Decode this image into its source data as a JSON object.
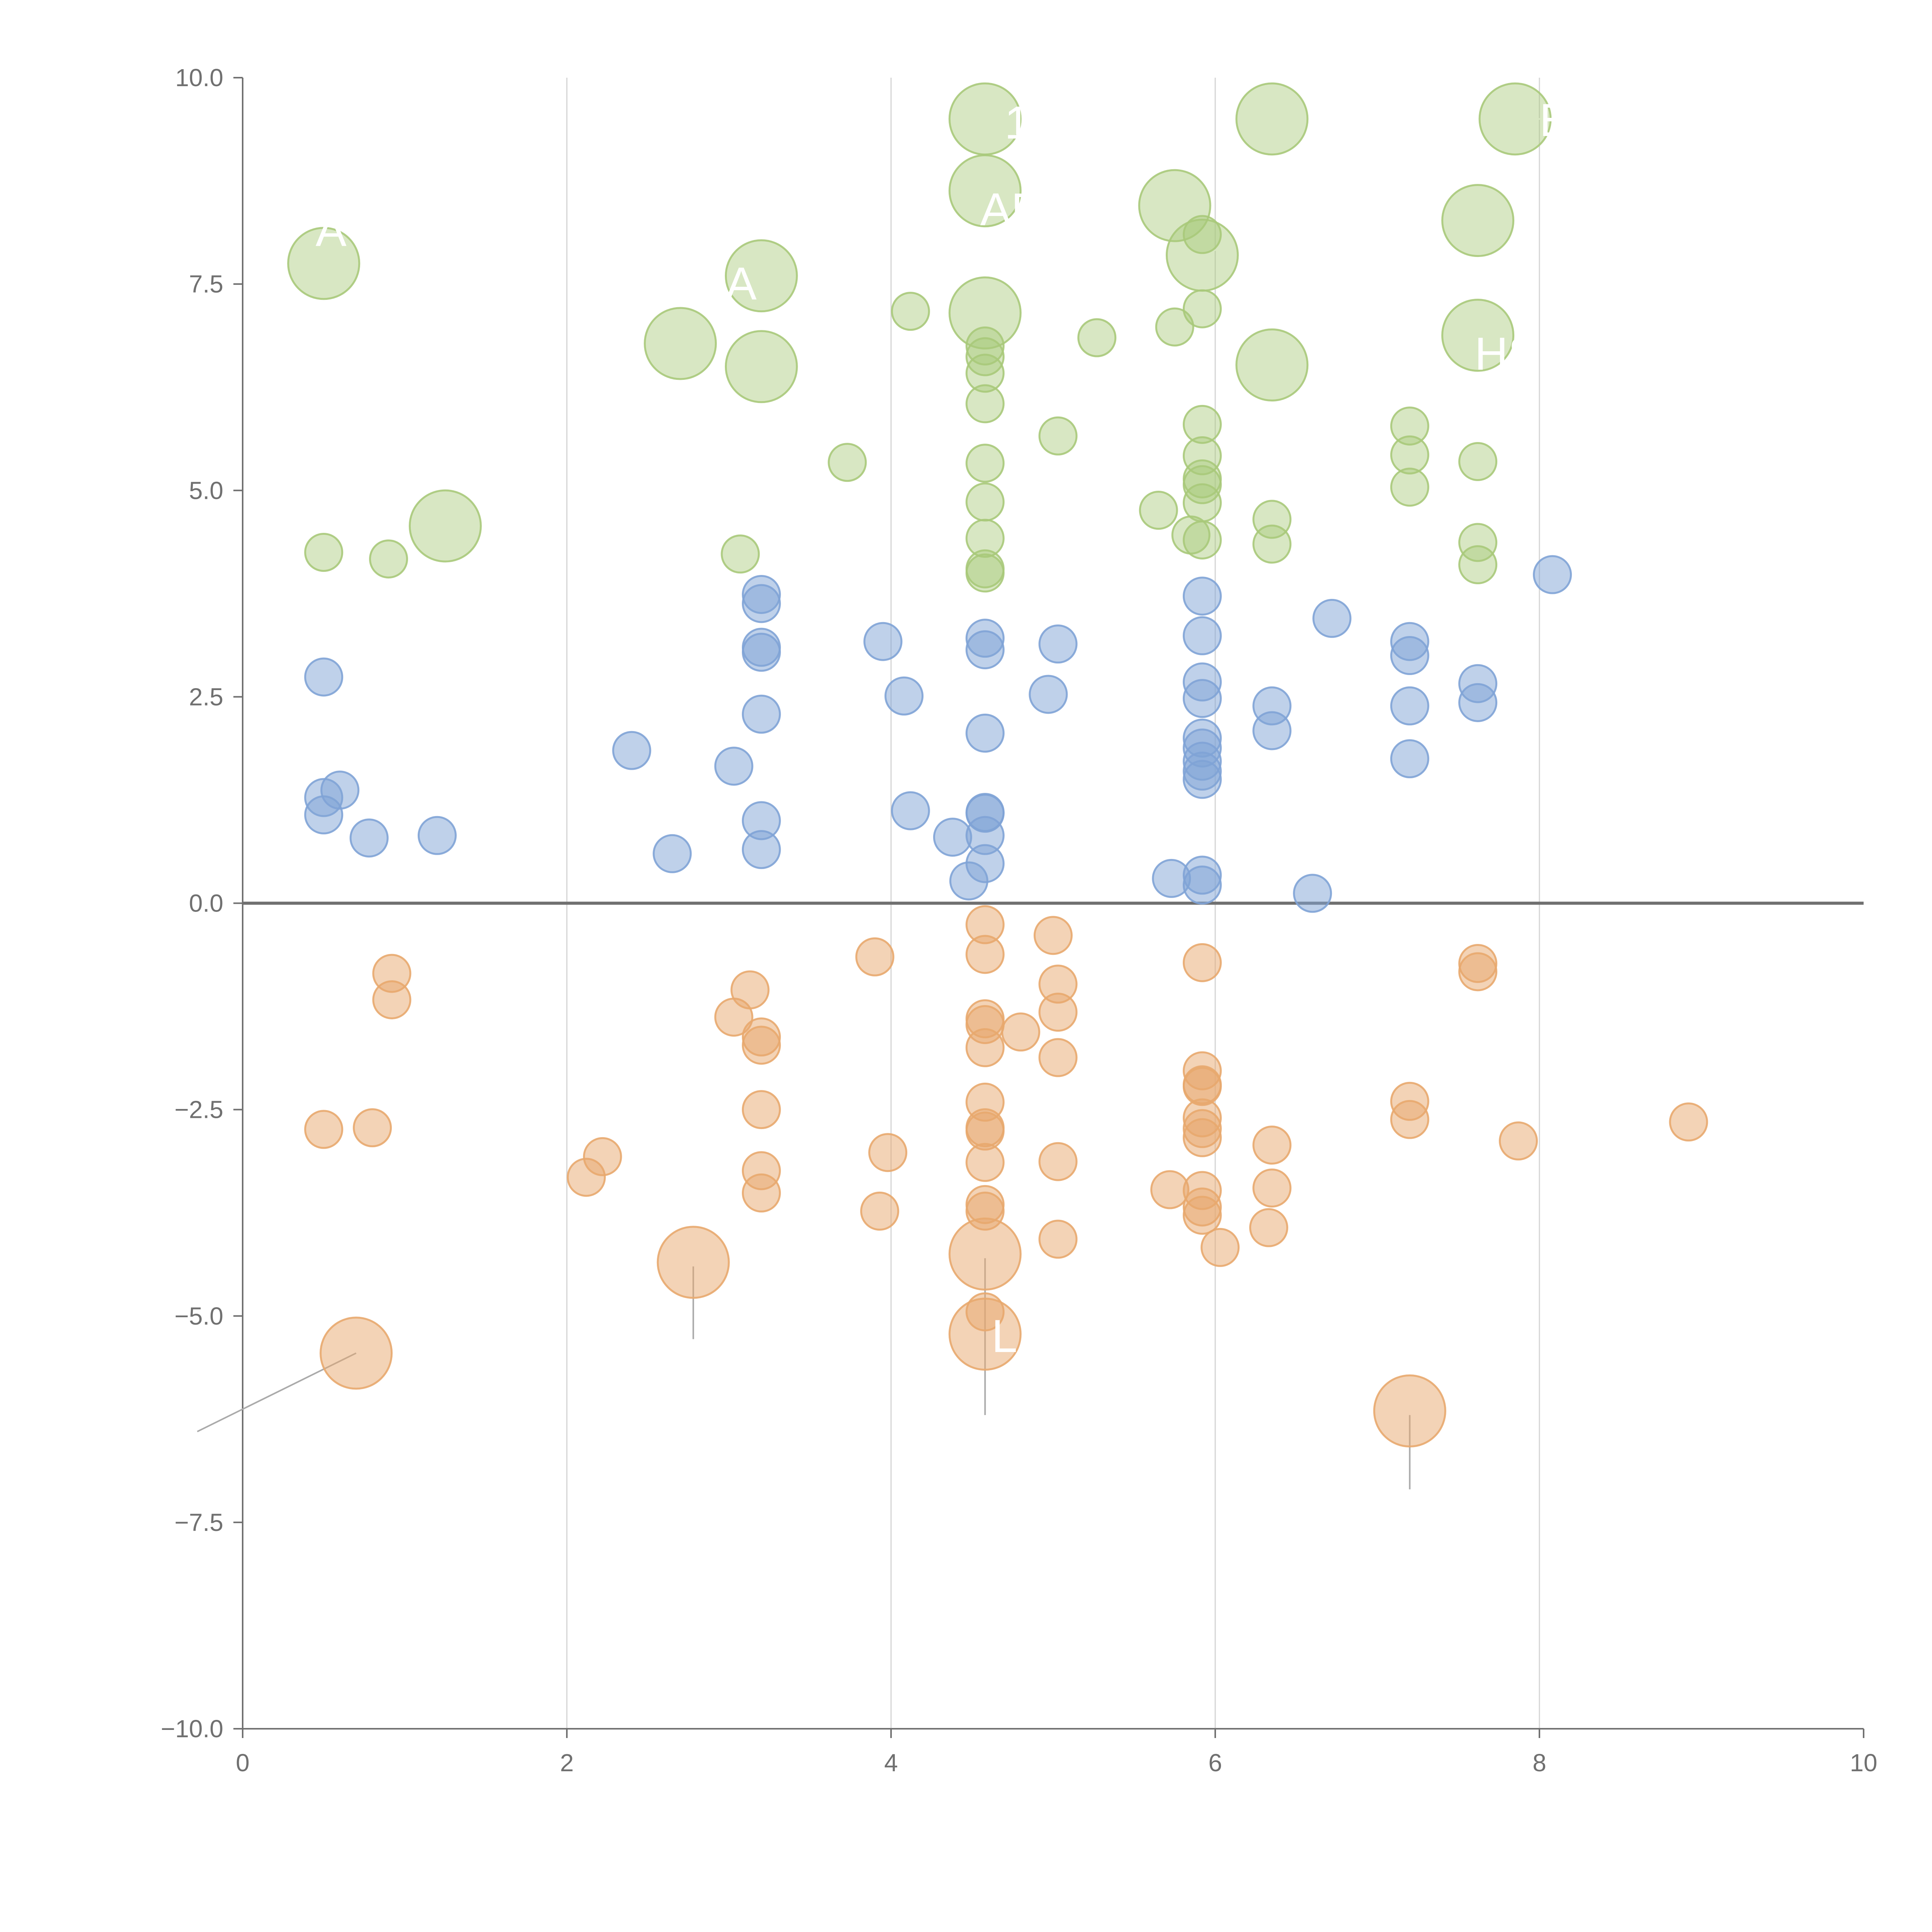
{
  "chart_data": {
    "type": "scatter",
    "title": "",
    "xlabel": "",
    "ylabel": "",
    "xlim": [
      0,
      10
    ],
    "ylim": [
      -10,
      10
    ],
    "grid": "vertical",
    "x_ticks": [
      0,
      2,
      4,
      6,
      8,
      10
    ],
    "x_tick_labels": [
      "0",
      "2",
      "4",
      "6",
      "8",
      "10"
    ],
    "y_ticks": [
      -10,
      -7.5,
      -5,
      -2.5,
      0,
      2.5,
      5,
      7.5,
      10
    ],
    "y_tick_labels": [
      "−10.0",
      "−7.5",
      "−5.0",
      "−2.5",
      "0.0",
      "2.5",
      "5.0",
      "7.5",
      "10.0"
    ],
    "zero_line": 0,
    "series": [
      {
        "name": "upper",
        "color": "#a9c97a",
        "fill_opacity": 0.45,
        "points": [
          [
            0.5,
            7.75,
            "big"
          ],
          [
            1.25,
            4.57,
            "big"
          ],
          [
            2.7,
            6.78,
            "big"
          ],
          [
            3.2,
            7.6,
            "big"
          ],
          [
            3.2,
            6.5,
            "big"
          ],
          [
            4.58,
            9.5,
            "big"
          ],
          [
            4.58,
            8.63,
            "big"
          ],
          [
            4.58,
            7.15,
            "big"
          ],
          [
            5.75,
            8.45,
            "big"
          ],
          [
            5.92,
            7.85,
            "big"
          ],
          [
            6.35,
            9.5,
            "big"
          ],
          [
            6.35,
            6.52,
            "big"
          ],
          [
            7.62,
            8.27,
            "big"
          ],
          [
            7.62,
            6.88,
            "big"
          ],
          [
            7.85,
            9.5,
            "big"
          ],
          [
            0.5,
            4.25,
            "small"
          ],
          [
            0.9,
            4.17,
            "small"
          ],
          [
            3.07,
            4.23,
            "small"
          ],
          [
            3.73,
            5.34,
            "small"
          ],
          [
            4.12,
            7.17,
            "small"
          ],
          [
            4.58,
            6.75,
            "small"
          ],
          [
            4.58,
            6.62,
            "small"
          ],
          [
            4.58,
            6.42,
            "small"
          ],
          [
            4.58,
            6.05,
            "small"
          ],
          [
            4.58,
            5.33,
            "small"
          ],
          [
            4.58,
            4.86,
            "small"
          ],
          [
            4.58,
            4.42,
            "small"
          ],
          [
            4.58,
            4.05,
            "small"
          ],
          [
            4.58,
            4.0,
            "small"
          ],
          [
            5.03,
            5.66,
            "small"
          ],
          [
            5.27,
            6.85,
            "small"
          ],
          [
            5.65,
            4.76,
            "small"
          ],
          [
            5.75,
            6.98,
            "small"
          ],
          [
            5.85,
            4.46,
            "small"
          ],
          [
            5.92,
            8.1,
            "small"
          ],
          [
            5.92,
            7.2,
            "small"
          ],
          [
            5.92,
            5.8,
            "small"
          ],
          [
            5.92,
            5.42,
            "small"
          ],
          [
            5.92,
            5.14,
            "small"
          ],
          [
            5.92,
            5.07,
            "small"
          ],
          [
            5.92,
            4.85,
            "small"
          ],
          [
            5.92,
            4.4,
            "small"
          ],
          [
            6.35,
            4.65,
            "small"
          ],
          [
            6.35,
            4.35,
            "small"
          ],
          [
            7.2,
            5.78,
            "small"
          ],
          [
            7.2,
            5.43,
            "small"
          ],
          [
            7.2,
            5.04,
            "small"
          ],
          [
            7.62,
            5.35,
            "small"
          ],
          [
            7.62,
            4.37,
            "small"
          ],
          [
            7.62,
            4.1,
            "small"
          ]
        ]
      },
      {
        "name": "middle",
        "color": "#7fa3d6",
        "fill_opacity": 0.5,
        "points": [
          [
            0.5,
            2.74
          ],
          [
            0.5,
            1.28
          ],
          [
            0.5,
            1.07
          ],
          [
            0.6,
            1.37
          ],
          [
            0.78,
            0.79
          ],
          [
            1.2,
            0.82
          ],
          [
            2.4,
            1.85
          ],
          [
            2.65,
            0.6
          ],
          [
            3.03,
            1.66
          ],
          [
            3.2,
            3.74
          ],
          [
            3.2,
            3.63
          ],
          [
            3.2,
            3.1
          ],
          [
            3.2,
            3.04
          ],
          [
            3.2,
            2.29
          ],
          [
            3.2,
            1.0
          ],
          [
            3.2,
            0.65
          ],
          [
            3.95,
            3.17
          ],
          [
            4.08,
            2.51
          ],
          [
            4.12,
            1.12
          ],
          [
            4.38,
            0.8
          ],
          [
            4.48,
            0.27
          ],
          [
            4.58,
            3.21
          ],
          [
            4.58,
            3.07
          ],
          [
            4.58,
            2.06
          ],
          [
            4.58,
            1.1
          ],
          [
            4.58,
            1.09
          ],
          [
            4.58,
            0.82
          ],
          [
            4.58,
            0.48
          ],
          [
            4.97,
            2.53
          ],
          [
            5.03,
            3.14
          ],
          [
            5.73,
            0.3
          ],
          [
            5.92,
            3.72
          ],
          [
            5.92,
            3.24
          ],
          [
            5.92,
            2.68
          ],
          [
            5.92,
            2.48
          ],
          [
            5.92,
            2.0
          ],
          [
            5.92,
            1.88
          ],
          [
            5.92,
            1.72
          ],
          [
            5.92,
            1.6
          ],
          [
            5.92,
            1.5
          ],
          [
            5.92,
            0.34
          ],
          [
            5.92,
            0.22
          ],
          [
            6.35,
            2.39
          ],
          [
            6.35,
            2.09
          ],
          [
            6.6,
            0.12
          ],
          [
            6.72,
            3.45
          ],
          [
            7.2,
            3.17
          ],
          [
            7.2,
            3.0
          ],
          [
            7.2,
            2.39
          ],
          [
            7.2,
            1.75
          ],
          [
            7.62,
            2.66
          ],
          [
            7.62,
            2.43
          ],
          [
            8.08,
            3.98
          ]
        ]
      },
      {
        "name": "lower",
        "color": "#e8a86e",
        "fill_opacity": 0.5,
        "points": [
          [
            0.5,
            -2.74,
            "small"
          ],
          [
            0.8,
            -2.72,
            "small"
          ],
          [
            0.92,
            -0.85,
            "small"
          ],
          [
            0.92,
            -1.17,
            "small"
          ],
          [
            2.12,
            -3.32,
            "small"
          ],
          [
            2.22,
            -3.07,
            "small"
          ],
          [
            3.03,
            -1.38,
            "small"
          ],
          [
            3.13,
            -1.05,
            "small"
          ],
          [
            3.2,
            -1.62,
            "small"
          ],
          [
            3.2,
            -1.72,
            "small"
          ],
          [
            3.2,
            -2.5,
            "small"
          ],
          [
            3.2,
            -3.24,
            "small"
          ],
          [
            3.2,
            -3.51,
            "small"
          ],
          [
            3.9,
            -0.65,
            "small"
          ],
          [
            3.93,
            -3.73,
            "small"
          ],
          [
            3.98,
            -3.02,
            "small"
          ],
          [
            4.58,
            -0.26,
            "small"
          ],
          [
            4.58,
            -0.62,
            "small"
          ],
          [
            4.58,
            -1.4,
            "small"
          ],
          [
            4.58,
            -1.47,
            "small"
          ],
          [
            4.58,
            -1.75,
            "small"
          ],
          [
            4.58,
            -2.41,
            "small"
          ],
          [
            4.58,
            -2.72,
            "small"
          ],
          [
            4.58,
            -2.76,
            "small"
          ],
          [
            4.58,
            -3.14,
            "small"
          ],
          [
            4.58,
            -3.65,
            "small"
          ],
          [
            4.58,
            -3.73,
            "small"
          ],
          [
            4.58,
            -4.95,
            "small"
          ],
          [
            4.8,
            -1.56,
            "small"
          ],
          [
            5.0,
            -0.39,
            "small"
          ],
          [
            5.03,
            -0.98,
            "small"
          ],
          [
            5.03,
            -1.32,
            "small"
          ],
          [
            5.03,
            -1.87,
            "small"
          ],
          [
            5.03,
            -3.13,
            "small"
          ],
          [
            5.03,
            -4.07,
            "small"
          ],
          [
            5.72,
            -3.47,
            "small"
          ],
          [
            5.92,
            -0.72,
            "small"
          ],
          [
            5.92,
            -2.03,
            "small"
          ],
          [
            5.92,
            -2.2,
            "small"
          ],
          [
            5.92,
            -2.22,
            "small"
          ],
          [
            5.92,
            -2.6,
            "small"
          ],
          [
            5.92,
            -2.73,
            "small"
          ],
          [
            5.92,
            -2.84,
            "small"
          ],
          [
            5.92,
            -3.48,
            "small"
          ],
          [
            5.92,
            -3.68,
            "small"
          ],
          [
            5.92,
            -3.78,
            "small"
          ],
          [
            6.03,
            -4.17,
            "small"
          ],
          [
            6.33,
            -3.93,
            "small"
          ],
          [
            6.35,
            -2.93,
            "small"
          ],
          [
            6.35,
            -3.45,
            "small"
          ],
          [
            7.2,
            -2.4,
            "small"
          ],
          [
            7.2,
            -2.62,
            "small"
          ],
          [
            7.62,
            -0.73,
            "small"
          ],
          [
            7.62,
            -0.83,
            "small"
          ],
          [
            7.87,
            -2.88,
            "small"
          ],
          [
            8.92,
            -2.65,
            "small"
          ],
          [
            0.7,
            -5.45,
            "big"
          ],
          [
            2.78,
            -4.35,
            "big"
          ],
          [
            4.58,
            -4.25,
            "big"
          ],
          [
            4.58,
            -5.22,
            "big"
          ],
          [
            7.2,
            -6.15,
            "big"
          ]
        ]
      }
    ],
    "annotations": [
      {
        "text": "A",
        "x": 0.45,
        "y": 8.15,
        "color": "#ffffff"
      },
      {
        "text": "A",
        "x": 2.98,
        "y": 7.5,
        "color": "#ffffff"
      },
      {
        "text": "1",
        "x": 4.7,
        "y": 9.45,
        "color": "#ffffff"
      },
      {
        "text": "AR",
        "x": 4.55,
        "y": 8.4,
        "color": "#ffffff"
      },
      {
        "text": "E",
        "x": 8.0,
        "y": 9.48,
        "color": "#ffffff"
      },
      {
        "text": "HS",
        "x": 7.6,
        "y": 6.65,
        "color": "#ffffff"
      },
      {
        "text": "L",
        "x": 4.62,
        "y": -5.25,
        "color": "#ffffff"
      }
    ],
    "leader_lines": [
      {
        "color": "#ffffff",
        "from": [
          0.55,
          7.8
        ],
        "to": [
          0.72,
          7.95
        ]
      },
      {
        "color": "#ffffff",
        "from": [
          1.27,
          4.57
        ],
        "to": [
          1.27,
          4.15
        ]
      },
      {
        "color": "#ffffff",
        "from": [
          2.7,
          6.78
        ],
        "to": [
          2.5,
          6.75
        ]
      },
      {
        "color": "#ffffff",
        "from": [
          3.2,
          7.6
        ],
        "to": [
          3.45,
          7.4
        ]
      },
      {
        "color": "#ffffff",
        "from": [
          3.2,
          6.5
        ],
        "to": [
          3.05,
          6.3
        ]
      },
      {
        "color": "#ffffff",
        "from": [
          4.58,
          9.5
        ],
        "to": [
          4.4,
          9.55
        ]
      },
      {
        "color": "#ffffff",
        "from": [
          4.58,
          8.63
        ],
        "to": [
          4.78,
          8.78
        ]
      },
      {
        "color": "#ffffff",
        "from": [
          4.58,
          7.15
        ],
        "to": [
          4.83,
          7.03
        ]
      },
      {
        "color": "#ffffff",
        "from": [
          5.75,
          8.45
        ],
        "to": [
          5.67,
          8.7
        ]
      },
      {
        "color": "#ffffff",
        "from": [
          5.92,
          7.85
        ],
        "to": [
          6.05,
          7.95
        ]
      },
      {
        "color": "#ffffff",
        "from": [
          6.35,
          9.5
        ],
        "to": [
          6.15,
          9.42
        ]
      },
      {
        "color": "#ffffff",
        "from": [
          6.35,
          6.52
        ],
        "to": [
          6.45,
          6.2
        ]
      },
      {
        "color": "#ffffff",
        "from": [
          7.62,
          8.27
        ],
        "to": [
          7.68,
          7.92
        ]
      },
      {
        "color": "#ffffff",
        "from": [
          7.62,
          6.88
        ],
        "to": [
          7.95,
          6.82
        ]
      },
      {
        "color": "#ffffff",
        "from": [
          7.85,
          9.5
        ],
        "to": [
          8.05,
          9.5
        ]
      },
      {
        "color": "#ffffff",
        "from": [
          5.27,
          6.85
        ],
        "to": [
          5.4,
          6.87
        ]
      },
      {
        "color": "#aaaaaa",
        "from": [
          0.7,
          -5.45
        ],
        "to": [
          -0.28,
          -6.4
        ]
      },
      {
        "color": "#aaaaaa",
        "from": [
          2.78,
          -4.4
        ],
        "to": [
          2.78,
          -5.28
        ]
      },
      {
        "color": "#aaaaaa",
        "from": [
          4.58,
          -4.3
        ],
        "to": [
          4.58,
          -6.2
        ]
      },
      {
        "color": "#aaaaaa",
        "from": [
          7.2,
          -6.2
        ],
        "to": [
          7.2,
          -7.1
        ]
      }
    ]
  }
}
